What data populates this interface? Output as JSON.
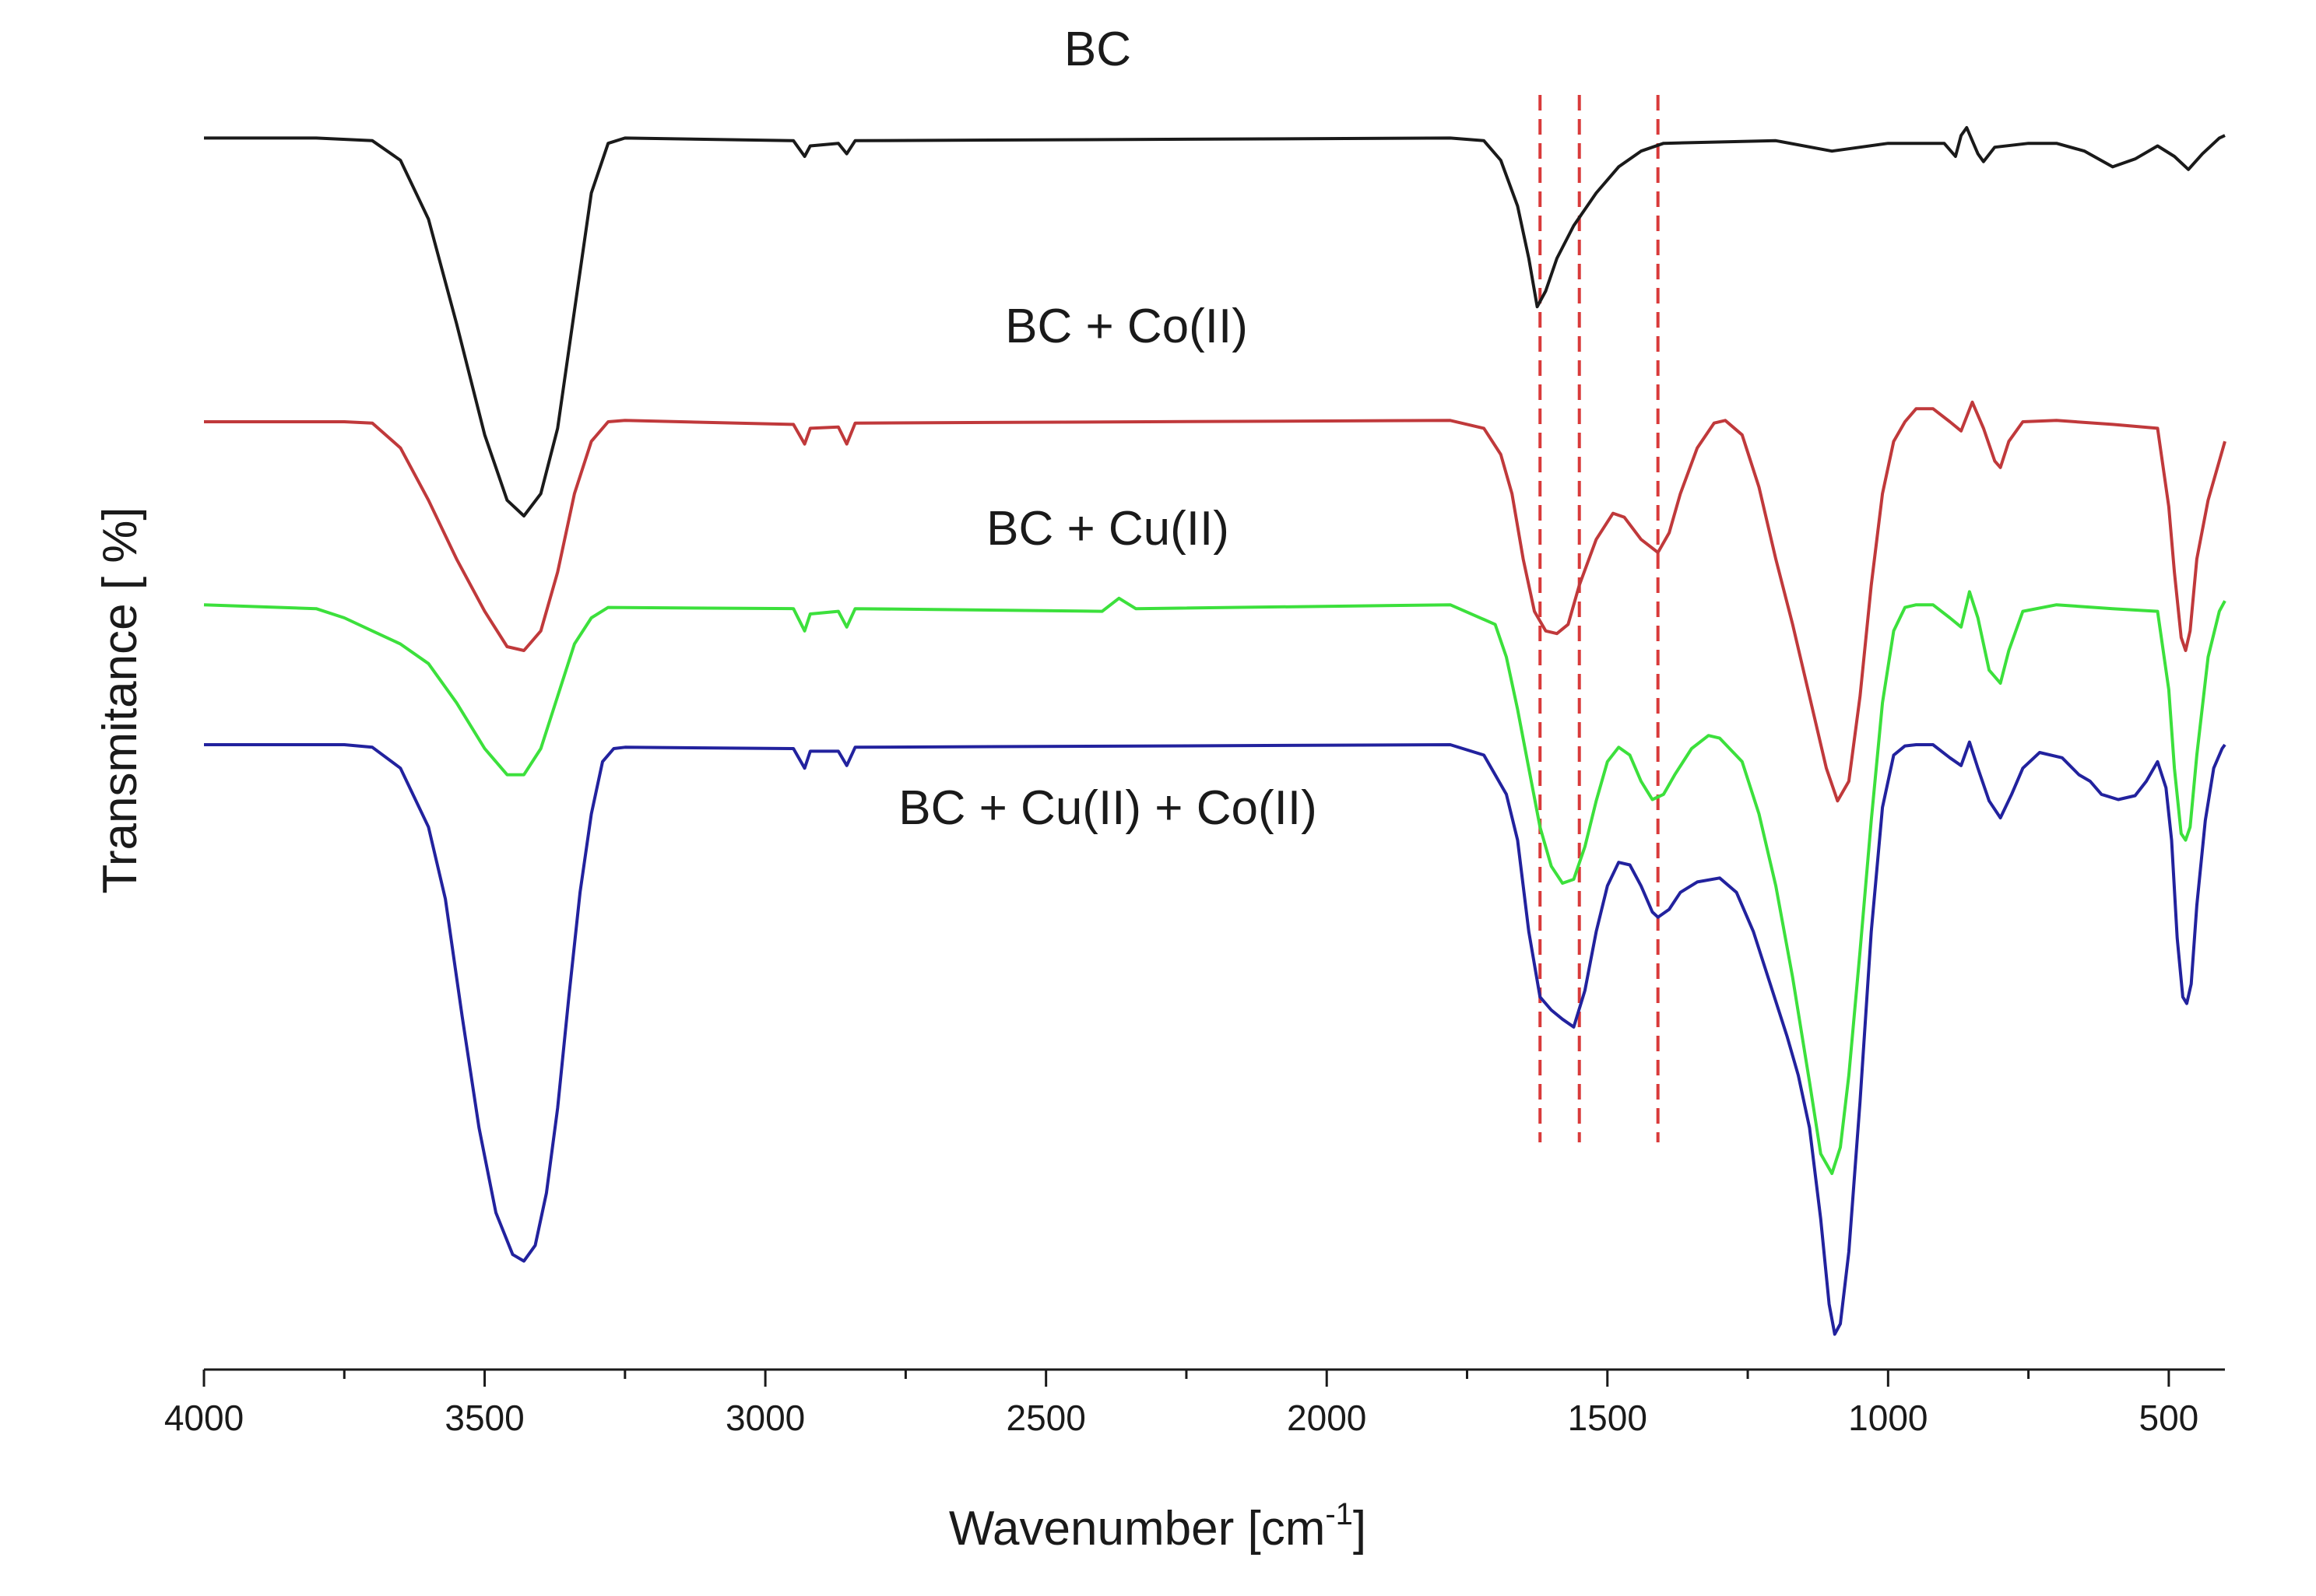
{
  "chart_data": {
    "type": "line",
    "xlabel": "Wavenumber [cm",
    "xlabel_sup": "-1",
    "xlabel_end": "]",
    "ylabel": "Transmitance [ %]",
    "xlim": [
      4000,
      400
    ],
    "x_reversed": true,
    "x_ticks": [
      4000,
      3500,
      3000,
      2500,
      2000,
      1500,
      1000,
      500
    ],
    "x_minor_ticks": [
      3750,
      3250,
      2750,
      2250,
      1750,
      1250,
      750
    ],
    "y_ticks_shown": false,
    "ylim": [
      0,
      100
    ],
    "grid": false,
    "legend": "none",
    "reference_lines": [
      1620,
      1550,
      1410
    ],
    "reference_line_color": "#d93a3a",
    "series": [
      {
        "name": "BC",
        "color": "#1a1a1a",
        "points": [
          [
            4000,
            94.2
          ],
          [
            3800,
            94.2
          ],
          [
            3700,
            94.0
          ],
          [
            3650,
            92.5
          ],
          [
            3600,
            88.0
          ],
          [
            3550,
            80.0
          ],
          [
            3500,
            71.5
          ],
          [
            3460,
            66.5
          ],
          [
            3430,
            65.3
          ],
          [
            3400,
            67.0
          ],
          [
            3370,
            72.0
          ],
          [
            3340,
            81.0
          ],
          [
            3310,
            90.0
          ],
          [
            3280,
            93.8
          ],
          [
            3250,
            94.2
          ],
          [
            2950,
            94.0
          ],
          [
            2930,
            92.8
          ],
          [
            2920,
            93.6
          ],
          [
            2870,
            93.8
          ],
          [
            2855,
            93.0
          ],
          [
            2840,
            94.0
          ],
          [
            1780,
            94.2
          ],
          [
            1720,
            94.0
          ],
          [
            1690,
            92.5
          ],
          [
            1660,
            89.0
          ],
          [
            1640,
            85.0
          ],
          [
            1625,
            81.3
          ],
          [
            1610,
            82.5
          ],
          [
            1590,
            85.0
          ],
          [
            1560,
            87.5
          ],
          [
            1520,
            90.0
          ],
          [
            1480,
            92.0
          ],
          [
            1440,
            93.2
          ],
          [
            1400,
            93.8
          ],
          [
            1200,
            94.0
          ],
          [
            1100,
            93.2
          ],
          [
            1000,
            93.8
          ],
          [
            900,
            93.8
          ],
          [
            880,
            92.8
          ],
          [
            870,
            94.4
          ],
          [
            860,
            95.0
          ],
          [
            840,
            93.0
          ],
          [
            830,
            92.4
          ],
          [
            810,
            93.5
          ],
          [
            750,
            93.8
          ],
          [
            700,
            93.8
          ],
          [
            650,
            93.2
          ],
          [
            600,
            92.0
          ],
          [
            560,
            92.6
          ],
          [
            520,
            93.6
          ],
          [
            490,
            92.8
          ],
          [
            465,
            91.8
          ],
          [
            440,
            93.0
          ],
          [
            410,
            94.2
          ],
          [
            400,
            94.4
          ]
        ]
      },
      {
        "name": "BC + Co(II)",
        "color": "#c0393b",
        "points": [
          [
            4000,
            72.5
          ],
          [
            3750,
            72.5
          ],
          [
            3700,
            72.4
          ],
          [
            3650,
            70.5
          ],
          [
            3600,
            66.5
          ],
          [
            3550,
            62.0
          ],
          [
            3500,
            58.0
          ],
          [
            3460,
            55.3
          ],
          [
            3430,
            55.0
          ],
          [
            3400,
            56.5
          ],
          [
            3370,
            61.0
          ],
          [
            3340,
            67.0
          ],
          [
            3310,
            71.0
          ],
          [
            3280,
            72.5
          ],
          [
            3250,
            72.6
          ],
          [
            2950,
            72.3
          ],
          [
            2930,
            70.8
          ],
          [
            2920,
            72.0
          ],
          [
            2870,
            72.1
          ],
          [
            2855,
            70.8
          ],
          [
            2840,
            72.4
          ],
          [
            1780,
            72.6
          ],
          [
            1720,
            72.0
          ],
          [
            1690,
            70.0
          ],
          [
            1670,
            67.0
          ],
          [
            1650,
            62.0
          ],
          [
            1630,
            58.0
          ],
          [
            1610,
            56.5
          ],
          [
            1590,
            56.3
          ],
          [
            1570,
            57.0
          ],
          [
            1550,
            60.0
          ],
          [
            1520,
            63.5
          ],
          [
            1490,
            65.5
          ],
          [
            1470,
            65.2
          ],
          [
            1440,
            63.5
          ],
          [
            1410,
            62.5
          ],
          [
            1390,
            64.0
          ],
          [
            1370,
            67.0
          ],
          [
            1340,
            70.5
          ],
          [
            1310,
            72.4
          ],
          [
            1290,
            72.6
          ],
          [
            1260,
            71.5
          ],
          [
            1230,
            67.5
          ],
          [
            1200,
            62.0
          ],
          [
            1170,
            57.0
          ],
          [
            1140,
            51.5
          ],
          [
            1110,
            46.0
          ],
          [
            1090,
            43.5
          ],
          [
            1070,
            45.0
          ],
          [
            1050,
            51.5
          ],
          [
            1030,
            60.0
          ],
          [
            1010,
            67.0
          ],
          [
            990,
            71.0
          ],
          [
            970,
            72.5
          ],
          [
            950,
            73.5
          ],
          [
            920,
            73.5
          ],
          [
            890,
            72.5
          ],
          [
            870,
            71.8
          ],
          [
            850,
            74.0
          ],
          [
            830,
            72.0
          ],
          [
            810,
            69.5
          ],
          [
            800,
            69.0
          ],
          [
            785,
            71.0
          ],
          [
            760,
            72.5
          ],
          [
            700,
            72.6
          ],
          [
            600,
            72.3
          ],
          [
            520,
            72.0
          ],
          [
            500,
            66.0
          ],
          [
            490,
            61.0
          ],
          [
            478,
            56.0
          ],
          [
            470,
            55.0
          ],
          [
            462,
            56.5
          ],
          [
            450,
            62.0
          ],
          [
            430,
            66.5
          ],
          [
            410,
            69.5
          ],
          [
            400,
            71.0
          ]
        ]
      },
      {
        "name": "BC + Cu(II)",
        "color": "#3ce03c",
        "points": [
          [
            4000,
            58.5
          ],
          [
            3800,
            58.2
          ],
          [
            3750,
            57.5
          ],
          [
            3700,
            56.5
          ],
          [
            3650,
            55.5
          ],
          [
            3600,
            54.0
          ],
          [
            3550,
            51.0
          ],
          [
            3500,
            47.5
          ],
          [
            3460,
            45.5
          ],
          [
            3430,
            45.5
          ],
          [
            3400,
            47.5
          ],
          [
            3370,
            51.5
          ],
          [
            3340,
            55.5
          ],
          [
            3310,
            57.5
          ],
          [
            3280,
            58.3
          ],
          [
            2950,
            58.2
          ],
          [
            2930,
            56.5
          ],
          [
            2920,
            57.8
          ],
          [
            2870,
            58.0
          ],
          [
            2855,
            56.8
          ],
          [
            2840,
            58.2
          ],
          [
            2400,
            58.0
          ],
          [
            2370,
            59.0
          ],
          [
            2340,
            58.2
          ],
          [
            1780,
            58.5
          ],
          [
            1700,
            57.0
          ],
          [
            1680,
            54.5
          ],
          [
            1660,
            50.5
          ],
          [
            1640,
            46.0
          ],
          [
            1620,
            41.5
          ],
          [
            1600,
            38.5
          ],
          [
            1580,
            37.2
          ],
          [
            1560,
            37.5
          ],
          [
            1540,
            40.0
          ],
          [
            1520,
            43.5
          ],
          [
            1500,
            46.5
          ],
          [
            1480,
            47.6
          ],
          [
            1460,
            47.0
          ],
          [
            1440,
            45.0
          ],
          [
            1420,
            43.6
          ],
          [
            1400,
            44.0
          ],
          [
            1380,
            45.5
          ],
          [
            1350,
            47.5
          ],
          [
            1320,
            48.5
          ],
          [
            1300,
            48.3
          ],
          [
            1260,
            46.5
          ],
          [
            1230,
            42.5
          ],
          [
            1200,
            37.0
          ],
          [
            1170,
            30.0
          ],
          [
            1140,
            22.0
          ],
          [
            1120,
            16.5
          ],
          [
            1100,
            15.0
          ],
          [
            1085,
            17.0
          ],
          [
            1070,
            22.5
          ],
          [
            1050,
            32.0
          ],
          [
            1030,
            42.0
          ],
          [
            1010,
            51.0
          ],
          [
            990,
            56.5
          ],
          [
            970,
            58.3
          ],
          [
            950,
            58.5
          ],
          [
            920,
            58.5
          ],
          [
            890,
            57.5
          ],
          [
            870,
            56.8
          ],
          [
            855,
            59.5
          ],
          [
            840,
            57.5
          ],
          [
            820,
            53.5
          ],
          [
            800,
            52.5
          ],
          [
            785,
            55.0
          ],
          [
            760,
            58.0
          ],
          [
            700,
            58.5
          ],
          [
            600,
            58.2
          ],
          [
            520,
            58.0
          ],
          [
            500,
            52.0
          ],
          [
            490,
            46.0
          ],
          [
            478,
            41.0
          ],
          [
            470,
            40.5
          ],
          [
            462,
            41.5
          ],
          [
            450,
            47.0
          ],
          [
            430,
            54.5
          ],
          [
            410,
            58.0
          ],
          [
            400,
            58.8
          ]
        ]
      },
      {
        "name": "BC + Cu(II) + Co(II)",
        "color": "#22229e",
        "points": [
          [
            4000,
            47.8
          ],
          [
            3750,
            47.8
          ],
          [
            3700,
            47.6
          ],
          [
            3650,
            46.0
          ],
          [
            3600,
            41.5
          ],
          [
            3570,
            36.0
          ],
          [
            3540,
            27.0
          ],
          [
            3510,
            18.5
          ],
          [
            3480,
            12.0
          ],
          [
            3450,
            8.8
          ],
          [
            3430,
            8.3
          ],
          [
            3410,
            9.5
          ],
          [
            3390,
            13.5
          ],
          [
            3370,
            20.0
          ],
          [
            3350,
            28.5
          ],
          [
            3330,
            36.5
          ],
          [
            3310,
            42.5
          ],
          [
            3290,
            46.5
          ],
          [
            3270,
            47.5
          ],
          [
            3250,
            47.6
          ],
          [
            2950,
            47.5
          ],
          [
            2930,
            46.0
          ],
          [
            2920,
            47.3
          ],
          [
            2870,
            47.3
          ],
          [
            2855,
            46.2
          ],
          [
            2840,
            47.6
          ],
          [
            1780,
            47.8
          ],
          [
            1720,
            47.0
          ],
          [
            1700,
            45.5
          ],
          [
            1680,
            44.0
          ],
          [
            1660,
            40.5
          ],
          [
            1640,
            33.5
          ],
          [
            1620,
            28.5
          ],
          [
            1600,
            27.5
          ],
          [
            1580,
            26.8
          ],
          [
            1560,
            26.2
          ],
          [
            1540,
            29.0
          ],
          [
            1520,
            33.5
          ],
          [
            1500,
            37.0
          ],
          [
            1480,
            38.8
          ],
          [
            1460,
            38.6
          ],
          [
            1440,
            37.0
          ],
          [
            1420,
            35.0
          ],
          [
            1410,
            34.6
          ],
          [
            1390,
            35.2
          ],
          [
            1370,
            36.5
          ],
          [
            1340,
            37.3
          ],
          [
            1300,
            37.6
          ],
          [
            1270,
            36.5
          ],
          [
            1240,
            33.5
          ],
          [
            1210,
            29.5
          ],
          [
            1180,
            25.5
          ],
          [
            1160,
            22.5
          ],
          [
            1140,
            18.5
          ],
          [
            1120,
            11.5
          ],
          [
            1105,
            5.0
          ],
          [
            1095,
            2.7
          ],
          [
            1085,
            3.5
          ],
          [
            1070,
            9.0
          ],
          [
            1050,
            20.5
          ],
          [
            1030,
            33.5
          ],
          [
            1010,
            43.0
          ],
          [
            990,
            47.0
          ],
          [
            970,
            47.7
          ],
          [
            950,
            47.8
          ],
          [
            920,
            47.8
          ],
          [
            890,
            46.8
          ],
          [
            870,
            46.2
          ],
          [
            855,
            48.0
          ],
          [
            840,
            46.0
          ],
          [
            820,
            43.5
          ],
          [
            800,
            42.2
          ],
          [
            780,
            44.0
          ],
          [
            760,
            46.0
          ],
          [
            730,
            47.2
          ],
          [
            690,
            46.8
          ],
          [
            660,
            45.5
          ],
          [
            640,
            45.0
          ],
          [
            620,
            44.0
          ],
          [
            590,
            43.6
          ],
          [
            560,
            43.9
          ],
          [
            540,
            45.0
          ],
          [
            520,
            46.5
          ],
          [
            505,
            44.5
          ],
          [
            495,
            40.5
          ],
          [
            485,
            33.0
          ],
          [
            475,
            28.5
          ],
          [
            468,
            28.0
          ],
          [
            460,
            29.5
          ],
          [
            450,
            35.5
          ],
          [
            435,
            42.0
          ],
          [
            420,
            46.0
          ],
          [
            405,
            47.5
          ],
          [
            400,
            47.8
          ]
        ]
      }
    ]
  }
}
